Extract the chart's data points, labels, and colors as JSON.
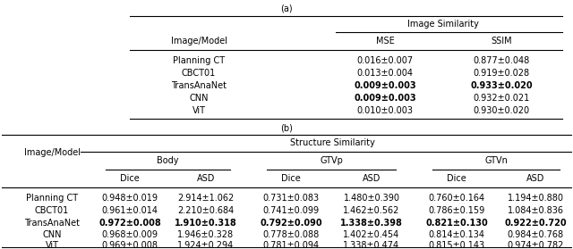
{
  "title_a": "(a)",
  "title_b": "(b)",
  "fig_width": 6.4,
  "fig_height": 2.79,
  "bg_color": "#ffffff",
  "table_a": {
    "header_group": "Image Similarity",
    "col_header": "Image/Model",
    "cols": [
      "MSE",
      "SSIM"
    ],
    "rows": [
      {
        "model": "Planning CT",
        "values": [
          "0.016±0.007",
          "0.877±0.048"
        ],
        "bold": [
          false,
          false
        ]
      },
      {
        "model": "CBCT01",
        "values": [
          "0.013±0.004",
          "0.919±0.028"
        ],
        "bold": [
          false,
          false
        ]
      },
      {
        "model": "TransAnaNet",
        "values": [
          "0.009±0.003",
          "0.933±0.020"
        ],
        "bold": [
          true,
          true
        ]
      },
      {
        "model": "CNN",
        "values": [
          "0.009±0.003",
          "0.932±0.021"
        ],
        "bold": [
          true,
          false
        ]
      },
      {
        "model": "ViT",
        "values": [
          "0.010±0.003",
          "0.930±0.020"
        ],
        "bold": [
          false,
          false
        ]
      }
    ]
  },
  "table_b": {
    "header_group": "Structure Similarity",
    "col_header": "Image/Model",
    "subgroups": [
      "Body",
      "GTVp",
      "GTVn"
    ],
    "cols": [
      "Dice",
      "ASD",
      "Dice",
      "ASD",
      "Dice",
      "ASD"
    ],
    "rows": [
      {
        "model": "Planning CT",
        "values": [
          "0.948±0.019",
          "2.914±1.062",
          "0.731±0.083",
          "1.480±0.390",
          "0.760±0.164",
          "1.194±0.880"
        ],
        "bold": [
          false,
          false,
          false,
          false,
          false,
          false
        ]
      },
      {
        "model": "CBCT01",
        "values": [
          "0.961±0.014",
          "2.210±0.684",
          "0.741±0.099",
          "1.462±0.562",
          "0.786±0.159",
          "1.084±0.836"
        ],
        "bold": [
          false,
          false,
          false,
          false,
          false,
          false
        ]
      },
      {
        "model": "TransAnaNet",
        "values": [
          "0.972±0.008",
          "1.910±0.318",
          "0.792±0.090",
          "1.338±0.398",
          "0.821±0.130",
          "0.922±0.720"
        ],
        "bold": [
          true,
          true,
          true,
          true,
          true,
          true
        ]
      },
      {
        "model": "CNN",
        "values": [
          "0.968±0.009",
          "1.946±0.328",
          "0.778±0.088",
          "1.402±0.454",
          "0.814±0.134",
          "0.984±0.768"
        ],
        "bold": [
          false,
          false,
          false,
          false,
          false,
          false
        ]
      },
      {
        "model": "ViT",
        "values": [
          "0.969±0.008",
          "1.924±0.294",
          "0.781±0.094",
          "1.338±0.474",
          "0.815±0.143",
          "0.974±0.782"
        ],
        "bold": [
          false,
          false,
          false,
          false,
          false,
          false
        ]
      }
    ]
  },
  "fs": 7.0,
  "lw": 0.8
}
